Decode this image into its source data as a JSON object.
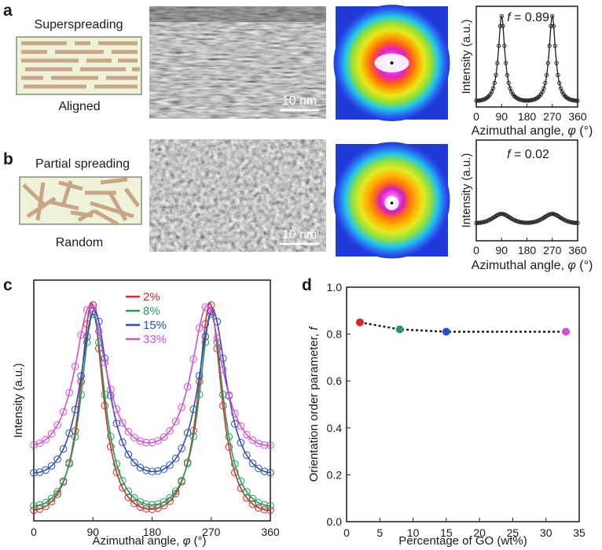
{
  "panels": {
    "a": {
      "letter": "a",
      "schematic_title": "Superspreading",
      "schematic_caption": "Aligned",
      "scale_bar": "10 nm",
      "plot": {
        "f_prefix": "f",
        "f_value": "= 0.89",
        "ylabel": "Intensity (a.u.)",
        "xlabel_text": "Azimuthal angle, ",
        "xlabel_symbol": "φ",
        "xlabel_unit": " (°)",
        "xticks": [
          "0",
          "90",
          "180",
          "270",
          "360"
        ]
      }
    },
    "b": {
      "letter": "b",
      "schematic_title": "Partial spreading",
      "schematic_caption": "Random",
      "scale_bar": "10 nm",
      "plot": {
        "f_prefix": "f",
        "f_value": "= 0.02",
        "ylabel": "Intensity (a.u.)",
        "xlabel_text": "Azimuthal angle, ",
        "xlabel_symbol": "φ",
        "xlabel_unit": " (°)",
        "xticks": [
          "0",
          "90",
          "180",
          "270",
          "360"
        ]
      }
    },
    "c": {
      "letter": "c"
    },
    "d": {
      "letter": "d"
    }
  },
  "colors": {
    "schematic_bg": "#eef2d9",
    "rod": "#c9a587",
    "s2": "#d42a2a",
    "s8": "#1fa05a",
    "s15": "#2a4cc8",
    "s33": "#d44ed4"
  },
  "chart_data": [
    {
      "type": "line",
      "panel": "a",
      "x_range": [
        0,
        360
      ],
      "series": [
        {
          "peaks": [
            90,
            270
          ],
          "peak_value": 1.0,
          "min_value": 0.02,
          "width_deg": 14
        }
      ]
    },
    {
      "type": "line",
      "panel": "b",
      "x_range": [
        0,
        360
      ],
      "series": [
        {
          "peaks": [
            90,
            270
          ],
          "peak_value": 0.25,
          "min_value": 0.12,
          "width_deg": 45
        }
      ]
    },
    {
      "type": "line",
      "panel": "c",
      "xlabel_text": "Azimuthal angle, ",
      "xlabel_symbol": "φ",
      "xlabel_unit": " (°)",
      "ylabel": "Intensity (a.u.)",
      "xticks": [
        "0",
        "90",
        "180",
        "270",
        "360"
      ],
      "xlim": [
        0,
        360
      ],
      "legend_position": "top-center",
      "series": [
        {
          "name": "2%",
          "peak1": 88,
          "peak2": 268,
          "peak_value": 0.95,
          "valley": 0.02,
          "edge": 0.07,
          "width_deg": 22
        },
        {
          "name": "8%",
          "peak1": 90,
          "peak2": 270,
          "peak_value": 0.9,
          "valley": 0.04,
          "edge": 0.08,
          "width_deg": 23
        },
        {
          "name": "15%",
          "peak1": 92,
          "peak2": 272,
          "peak_value": 0.92,
          "valley": 0.19,
          "edge": 0.07,
          "width_deg": 27
        },
        {
          "name": "33%",
          "peak1": 86,
          "peak2": 264,
          "peak_value": 0.94,
          "valley": 0.32,
          "edge": 0.05,
          "width_deg": 30
        }
      ]
    },
    {
      "type": "scatter",
      "panel": "d",
      "xlabel": "Percentage of GO (wt%)",
      "ylabel_text": "Orientation order parameter, ",
      "ylabel_symbol": "f",
      "xticks": [
        "0",
        "5",
        "10",
        "15",
        "20",
        "25",
        "30",
        "35"
      ],
      "yticks": [
        "0.0",
        "0.2",
        "0.4",
        "0.6",
        "0.8",
        "1.0"
      ],
      "xlim": [
        0,
        35
      ],
      "ylim": [
        0,
        1
      ],
      "points": [
        {
          "x": 2,
          "y": 0.85,
          "color": "#d42a2a"
        },
        {
          "x": 8,
          "y": 0.82,
          "color": "#1fa05a"
        },
        {
          "x": 15,
          "y": 0.81,
          "color": "#2a4cc8"
        },
        {
          "x": 33,
          "y": 0.81,
          "color": "#d44ed4"
        }
      ]
    }
  ]
}
